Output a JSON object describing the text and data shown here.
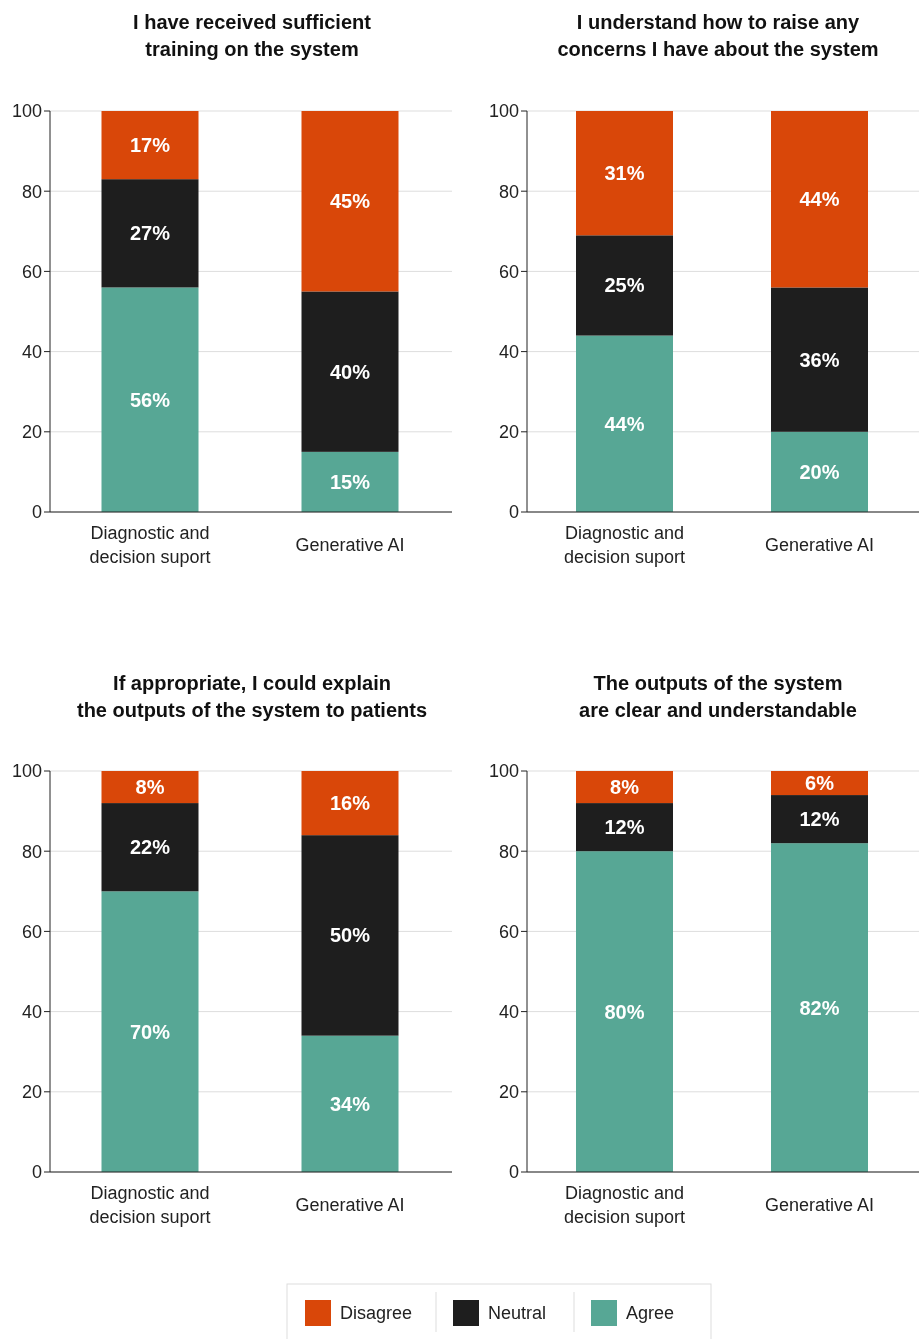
{
  "chart_data": [
    {
      "type": "bar",
      "title": "I have received sufficient\ntraining on the system",
      "categories": [
        "Diagnostic and decision suport",
        "Generative AI"
      ],
      "stacked": true,
      "ylim": [
        0,
        100
      ],
      "yticks": [
        0,
        20,
        40,
        60,
        80,
        100
      ],
      "grid": "y",
      "series": [
        {
          "color": "#57a795",
          "values": [
            56,
            15
          ],
          "value_labels": [
            "56%",
            "15%"
          ]
        },
        {
          "color": "#1e1e1e",
          "values": [
            27,
            40
          ],
          "value_labels": [
            "27%",
            "40%"
          ]
        },
        {
          "color": "#d94709",
          "values": [
            17,
            45
          ],
          "value_labels": [
            "17%",
            "45%"
          ]
        }
      ]
    },
    {
      "type": "bar",
      "title": "I understand how to raise any\nconcerns I have about the system",
      "categories": [
        "Diagnostic and decision suport",
        "Generative AI"
      ],
      "stacked": true,
      "ylim": [
        0,
        100
      ],
      "yticks": [
        0,
        20,
        40,
        60,
        80,
        100
      ],
      "grid": "y",
      "series": [
        {
          "color": "#57a795",
          "values": [
            44,
            20
          ],
          "value_labels": [
            "44%",
            "20%"
          ]
        },
        {
          "color": "#1e1e1e",
          "values": [
            25,
            36
          ],
          "value_labels": [
            "25%",
            "36%"
          ]
        },
        {
          "color": "#d94709",
          "values": [
            31,
            44
          ],
          "value_labels": [
            "31%",
            "44%"
          ]
        }
      ]
    },
    {
      "type": "bar",
      "title": "If appropriate, I could explain\nthe outputs of the system to patients",
      "categories": [
        "Diagnostic and decision suport",
        "Generative AI"
      ],
      "stacked": true,
      "ylim": [
        0,
        100
      ],
      "yticks": [
        0,
        20,
        40,
        60,
        80,
        100
      ],
      "grid": "y",
      "series": [
        {
          "color": "#57a795",
          "values": [
            70,
            34
          ],
          "value_labels": [
            "70%",
            "34%"
          ]
        },
        {
          "color": "#1e1e1e",
          "values": [
            22,
            50
          ],
          "value_labels": [
            "22%",
            "50%"
          ]
        },
        {
          "color": "#d94709",
          "values": [
            8,
            16
          ],
          "value_labels": [
            "8%",
            "16%"
          ]
        }
      ]
    },
    {
      "type": "bar",
      "title": "The outputs of the system\nare clear and understandable",
      "categories": [
        "Diagnostic and decision suport",
        "Generative AI"
      ],
      "stacked": true,
      "ylim": [
        0,
        100
      ],
      "yticks": [
        0,
        20,
        40,
        60,
        80,
        100
      ],
      "grid": "y",
      "legend": "bottom",
      "series": [
        {
          "name": "Agree",
          "color": "#57a795",
          "values": [
            80,
            82
          ],
          "value_labels": [
            "80%",
            "82%"
          ]
        },
        {
          "name": "Neutral",
          "color": "#1e1e1e",
          "values": [
            12,
            12
          ],
          "value_labels": [
            "12%",
            "12%"
          ]
        },
        {
          "name": "Disagree",
          "color": "#d94709",
          "values": [
            8,
            6
          ],
          "value_labels": [
            "8%",
            "6%"
          ]
        }
      ]
    }
  ]
}
